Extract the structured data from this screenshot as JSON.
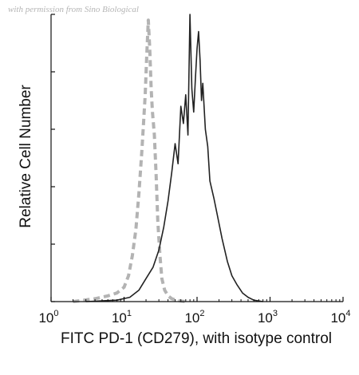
{
  "watermark": "with permission from Sino Biological",
  "chart_data": {
    "type": "line",
    "title": "",
    "xlabel": "FITC PD-1 (CD279), with isotype control",
    "ylabel": "Relative Cell Number",
    "x_scale": "log",
    "xlim": [
      1,
      10000
    ],
    "ylim": [
      0,
      100
    ],
    "x_ticks": [
      {
        "base": "10",
        "exp": "0",
        "value": 1
      },
      {
        "base": "10",
        "exp": "1",
        "value": 10
      },
      {
        "base": "10",
        "exp": "2",
        "value": 100
      },
      {
        "base": "10",
        "exp": "3",
        "value": 1000
      },
      {
        "base": "10",
        "exp": "4",
        "value": 10000
      }
    ],
    "y_ticks": [
      0,
      20,
      40,
      60,
      80,
      100
    ],
    "grid": false,
    "legend": "none",
    "series": [
      {
        "style": "dashed",
        "color": "#b3b3b3",
        "x": [
          2,
          4,
          6,
          8,
          10,
          11.5,
          13,
          14.5,
          16,
          17.5,
          18.5,
          19.5,
          20.5,
          21.5,
          22.5,
          23.5,
          24.5,
          26,
          27.5,
          29,
          31,
          33,
          36,
          40,
          45,
          52,
          60,
          70
        ],
        "y": [
          0,
          1,
          2,
          3,
          5,
          9,
          16,
          25,
          38,
          52,
          62,
          72,
          86,
          98,
          88,
          74,
          66,
          58,
          44,
          28,
          16,
          8,
          4,
          2,
          1,
          0.5,
          0.2,
          0
        ]
      },
      {
        "style": "solid",
        "color": "#222222",
        "x": [
          3,
          8,
          12,
          16,
          20,
          25,
          30,
          35,
          40,
          45,
          50,
          55,
          60,
          65,
          70,
          75,
          80,
          85,
          90,
          95,
          100,
          105,
          110,
          115,
          120,
          130,
          140,
          150,
          170,
          190,
          220,
          260,
          300,
          350,
          420,
          500,
          600,
          800
        ],
        "y": [
          0,
          0.5,
          1.5,
          4,
          8,
          12,
          18,
          26,
          35,
          45,
          55,
          48,
          68,
          62,
          72,
          58,
          100,
          74,
          66,
          78,
          88,
          94,
          84,
          70,
          76,
          60,
          54,
          42,
          36,
          30,
          22,
          14,
          9,
          6,
          3,
          1.5,
          0.5,
          0
        ]
      }
    ]
  }
}
